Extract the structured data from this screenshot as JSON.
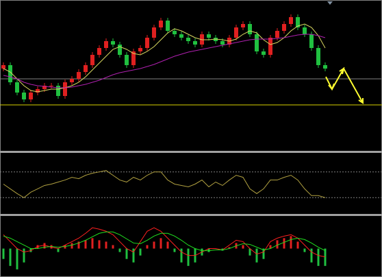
{
  "chart_data": [
    {
      "type": "candlestick",
      "open": [
        120,
        125,
        100,
        85,
        75,
        85,
        90,
        95,
        95,
        80,
        100,
        105,
        115,
        125,
        140,
        150,
        160,
        155,
        140,
        125,
        145,
        150,
        165,
        180,
        190,
        175,
        170,
        165,
        160,
        155,
        170,
        165,
        160,
        155,
        165,
        180,
        185,
        170,
        145,
        140,
        165,
        175,
        185,
        195,
        180,
        170,
        150,
        125
      ],
      "high": [
        129,
        129,
        104,
        89,
        89,
        94,
        99,
        99,
        99,
        104,
        109,
        119,
        129,
        144,
        154,
        164,
        164,
        159,
        144,
        149,
        154,
        169,
        184,
        194,
        194,
        179,
        174,
        169,
        164,
        174,
        174,
        169,
        164,
        169,
        184,
        189,
        189,
        174,
        149,
        169,
        179,
        189,
        199,
        199,
        184,
        174,
        154,
        129
      ],
      "low": [
        116,
        96,
        81,
        71,
        71,
        81,
        86,
        91,
        76,
        76,
        96,
        101,
        111,
        121,
        136,
        146,
        151,
        136,
        121,
        121,
        141,
        146,
        161,
        176,
        171,
        166,
        161,
        156,
        151,
        151,
        161,
        156,
        151,
        151,
        161,
        176,
        166,
        141,
        136,
        136,
        161,
        171,
        181,
        176,
        166,
        146,
        121,
        116
      ],
      "close": [
        125,
        100,
        85,
        75,
        85,
        90,
        95,
        95,
        80,
        100,
        105,
        115,
        125,
        140,
        150,
        160,
        155,
        140,
        125,
        145,
        150,
        165,
        180,
        190,
        175,
        170,
        165,
        160,
        155,
        170,
        165,
        160,
        155,
        165,
        180,
        185,
        170,
        145,
        140,
        165,
        175,
        185,
        195,
        180,
        170,
        150,
        125,
        120
      ],
      "up_color": "#e02020",
      "down_color": "#20c040",
      "series": [
        {
          "color": "#d8d860",
          "values": [
            120,
            115,
            105,
            95,
            88,
            86,
            88,
            90,
            90,
            92,
            95,
            100,
            108,
            118,
            128,
            138,
            148,
            152,
            148,
            142,
            140,
            145,
            152,
            162,
            172,
            178,
            175,
            170,
            165,
            162,
            162,
            163,
            162,
            160,
            163,
            170,
            175,
            172,
            162,
            155,
            158,
            165,
            175,
            182,
            185,
            180,
            168,
            150
          ]
        },
        {
          "color": "#b020b0",
          "values": [
            110,
            108,
            105,
            100,
            97,
            95,
            94,
            93,
            92,
            92,
            93,
            95,
            97,
            100,
            103,
            107,
            111,
            114,
            116,
            118,
            120,
            123,
            126,
            130,
            134,
            138,
            141,
            144,
            146,
            148,
            150,
            152,
            154,
            156,
            158,
            160,
            162,
            163,
            163,
            163,
            164,
            165,
            167,
            169,
            170,
            170,
            168,
            165
          ]
        }
      ],
      "levels": [
        {
          "value": 105,
          "color": "#808080"
        },
        {
          "value": 67,
          "color": "#d8d000"
        }
      ],
      "ylim": [
        0,
        220
      ]
    },
    {
      "type": "line",
      "series": [
        {
          "color": "#b0a040",
          "values": [
            44,
            37,
            30,
            24,
            32,
            37,
            42,
            44,
            47,
            50,
            54,
            52,
            57,
            60,
            62,
            64,
            57,
            50,
            47,
            54,
            50,
            57,
            62,
            62,
            50,
            44,
            42,
            40,
            44,
            50,
            40,
            47,
            42,
            50,
            57,
            54,
            37,
            30,
            37,
            50,
            50,
            54,
            57,
            50,
            37,
            27,
            27,
            24
          ]
        }
      ],
      "levels": [
        {
          "value": 62,
          "color": "#808080"
        },
        {
          "value": 24,
          "color": "#808080"
        }
      ],
      "ylim": [
        0,
        90
      ]
    },
    {
      "type": "macd",
      "values": [
        -15,
        -25,
        -30,
        -20,
        -5,
        5,
        8,
        5,
        -5,
        5,
        8,
        10,
        12,
        15,
        12,
        10,
        5,
        -5,
        -15,
        -20,
        -10,
        5,
        10,
        15,
        10,
        -5,
        -20,
        -25,
        -20,
        -10,
        -5,
        0,
        -3,
        2,
        8,
        5,
        -10,
        -20,
        -15,
        5,
        12,
        15,
        18,
        10,
        -5,
        -20,
        -25,
        -25
      ],
      "up_color": "#e02020",
      "down_color": "#20c040",
      "series": [
        {
          "color": "#ff2020",
          "values": [
            20,
            10,
            0,
            -5,
            -3,
            3,
            5,
            2,
            0,
            5,
            10,
            15,
            22,
            30,
            28,
            25,
            20,
            10,
            0,
            -5,
            10,
            25,
            30,
            25,
            15,
            5,
            -5,
            -10,
            -10,
            -5,
            0,
            0,
            -2,
            5,
            12,
            10,
            0,
            -8,
            -5,
            10,
            15,
            18,
            20,
            15,
            5,
            -5,
            -10,
            -12
          ]
        },
        {
          "color": "#20e020",
          "values": [
            18,
            15,
            10,
            5,
            0,
            0,
            2,
            3,
            2,
            3,
            5,
            8,
            12,
            17,
            22,
            24,
            24,
            20,
            14,
            8,
            7,
            12,
            18,
            22,
            22,
            18,
            12,
            5,
            0,
            -3,
            -3,
            -2,
            -2,
            0,
            4,
            7,
            6,
            2,
            -2,
            0,
            5,
            9,
            13,
            15,
            13,
            8,
            2,
            -3
          ]
        }
      ],
      "ylim": [
        -41,
        47
      ]
    }
  ]
}
